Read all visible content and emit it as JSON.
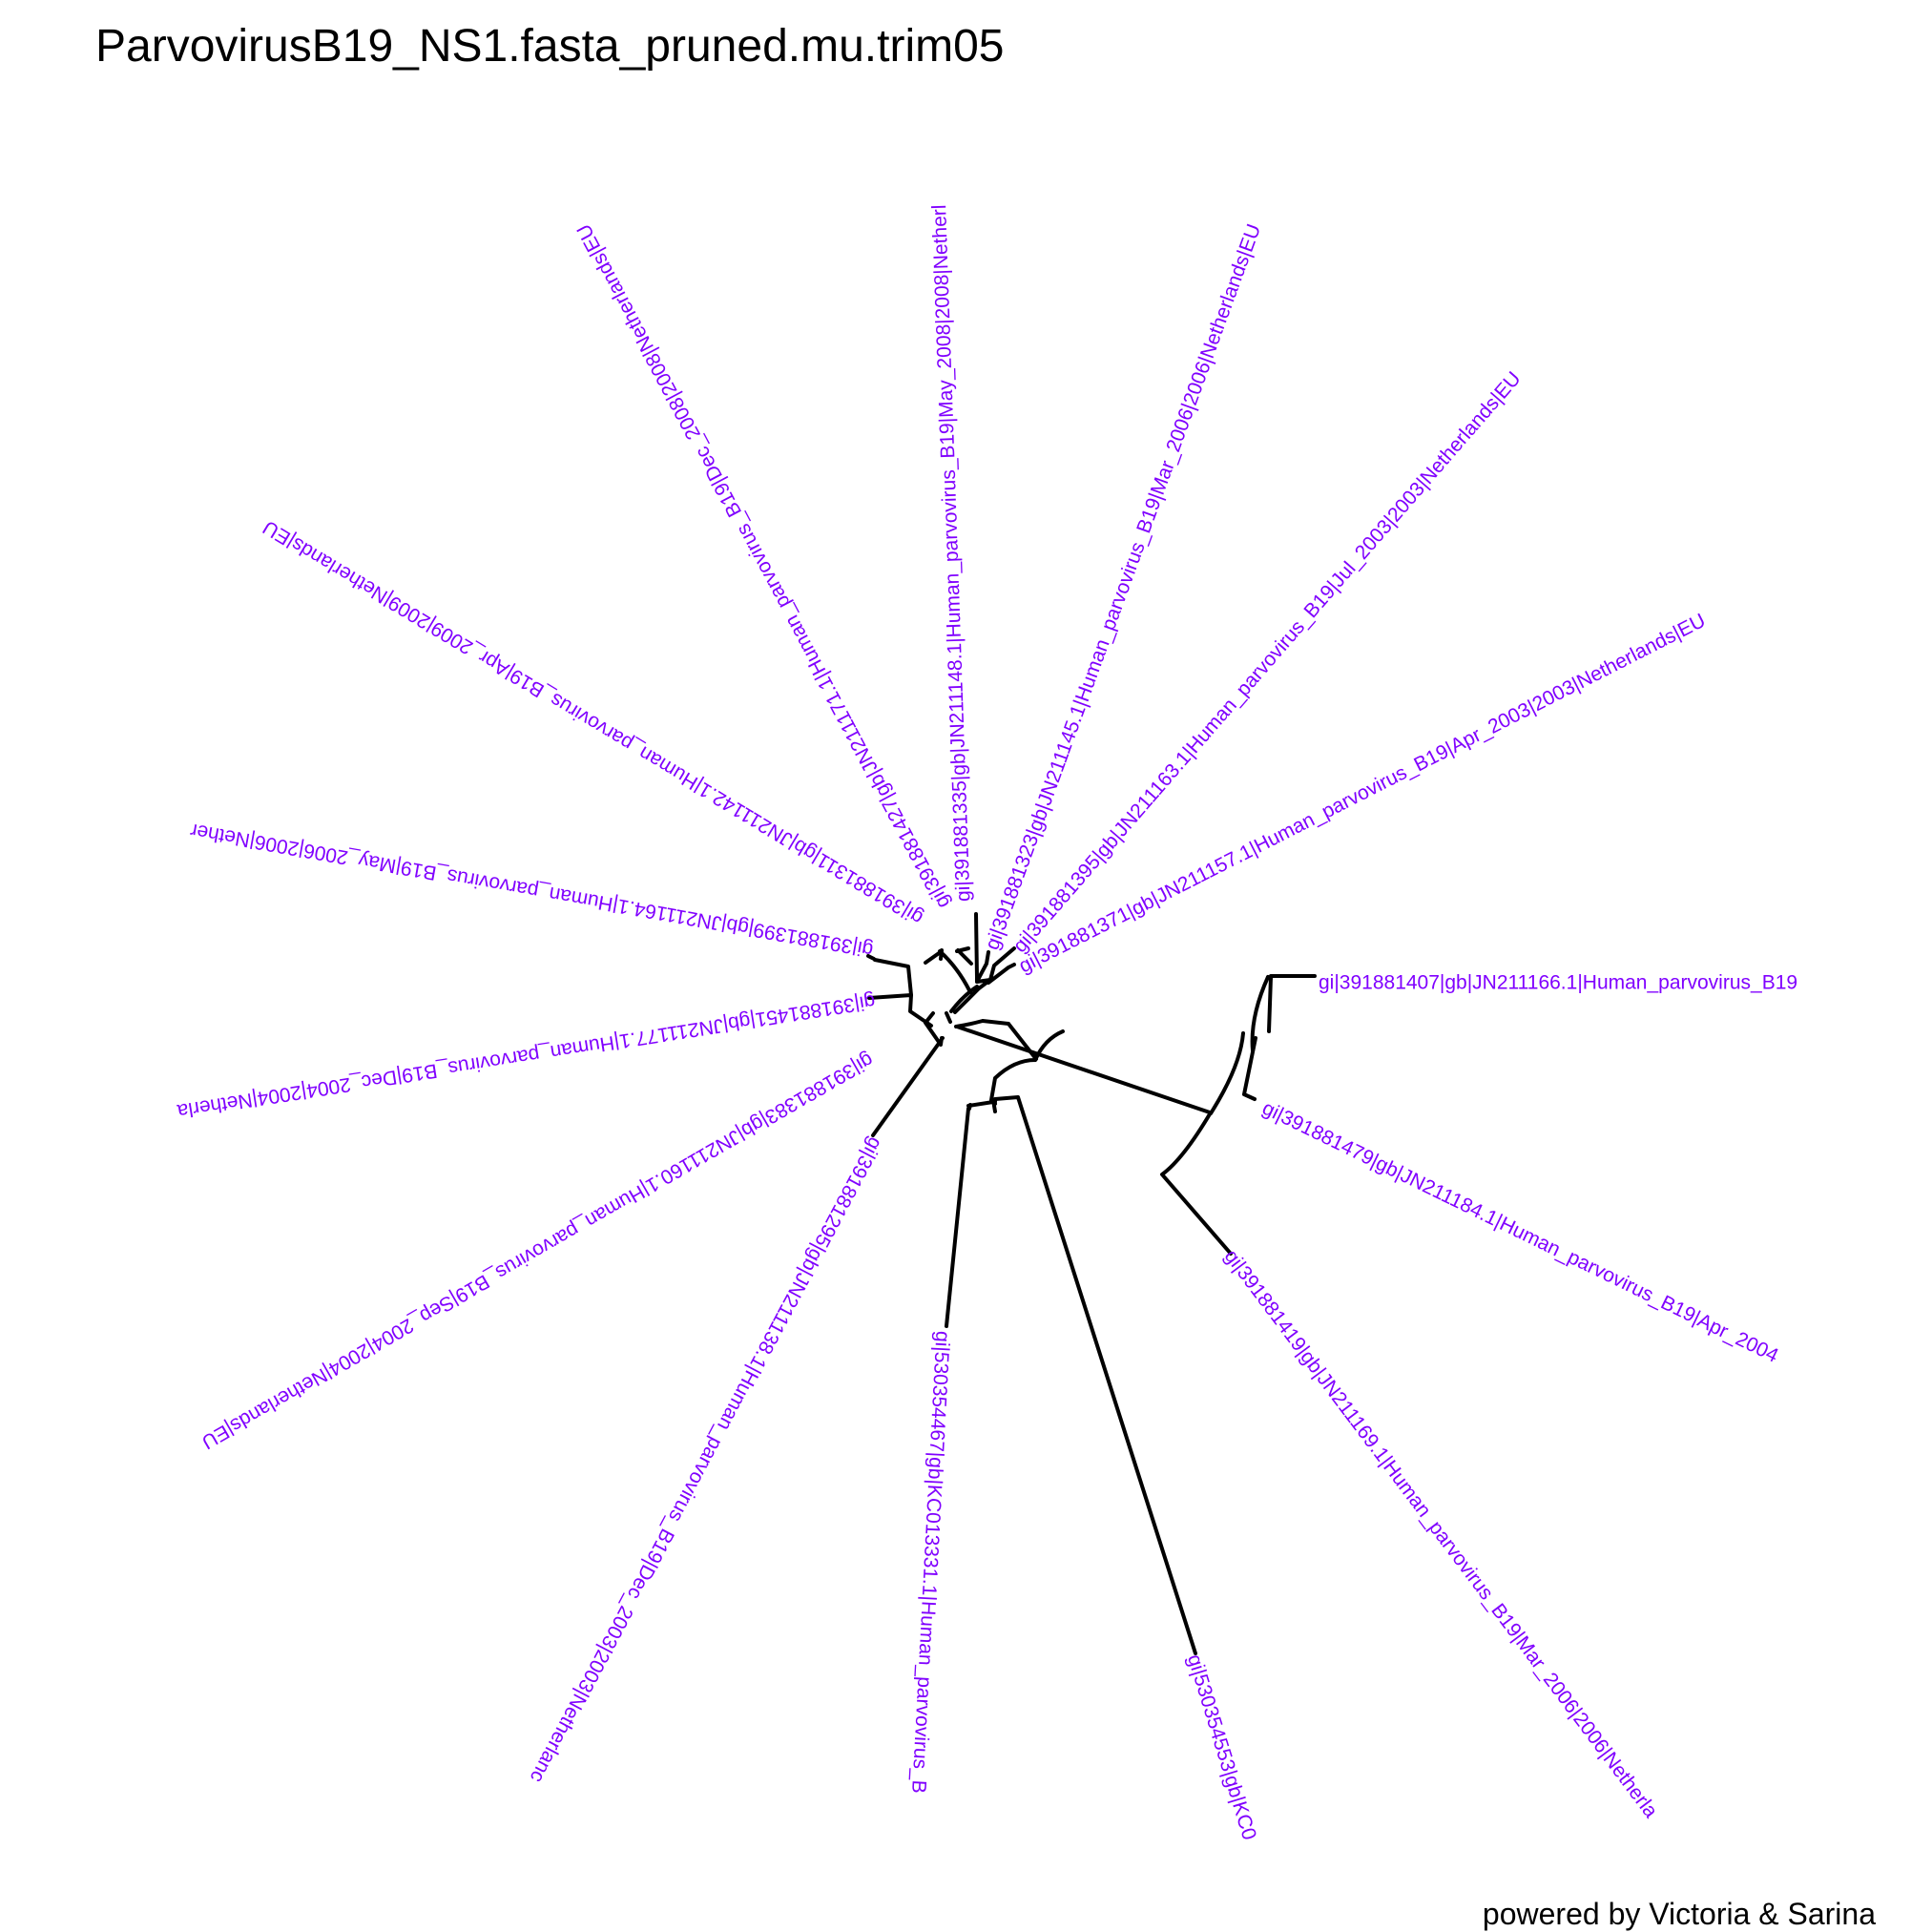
{
  "title": "ParvovirusB19_NS1.fasta_pruned.mu.trim05",
  "credit": "powered by Victoria & Sarina",
  "colors": {
    "label": "#8000ff",
    "branch": "#000000",
    "background": "#ffffff"
  },
  "tree": {
    "layout": "circular",
    "tips": [
      "gi|391881407|gb|JN211166.1|Human_parvovirus_B19",
      "gi|391881479|gb|JN211184.1|Human_parvovirus_B19|Apr_2004",
      "gi|391881419|gb|JN211169.1|Human_parvovirus_B19|Mar_2006|2006|Netherla",
      "gi|530354553|gb|KC0",
      "gi|530354467|gb|KC013331.1|Human_parvovirus_B",
      "gi|391881295|gb|JN211138.1|Human_parvovirus_B19|Dec_2003|2003|Netherlanc",
      "gi|391881383|gb|JN211160.1|Human_parvovirus_B19|Sep_2004|2004|Netherlands|EU",
      "gi|391881451|gb|JN211177.1|Human_parvovirus_B19|Dec_2004|2004|Netherla",
      "gi|391881399|gb|JN211164.1|Human_parvovirus_B19|May_2006|2006|Nether",
      "gi|391881311|gb|JN211142.1|Human_parvovirus_B19|Apr_2009|2009|Netherlands|EU",
      "gi|391881427|gb|JN211171.1|Human_parvovirus_B19|Dec_2008|2008|Netherlands|EU",
      "gi|391881335|gb|JN211148.1|Human_parvovirus_B19|May_2008|2008|Netherl",
      "gi|391881323|gb|JN211145.1|Human_parvovirus_B19|Mar_2006|2006|Netherlands|EU",
      "gi|391881395|gb|JN211163.1|Human_parvovirus_B19|Jul_2003|2003|Netherlands|EU",
      "gi|391881371|gb|JN211157.1|Human_parvovirus_B19|Apr_2003|2003|Netherlands|EU"
    ]
  }
}
